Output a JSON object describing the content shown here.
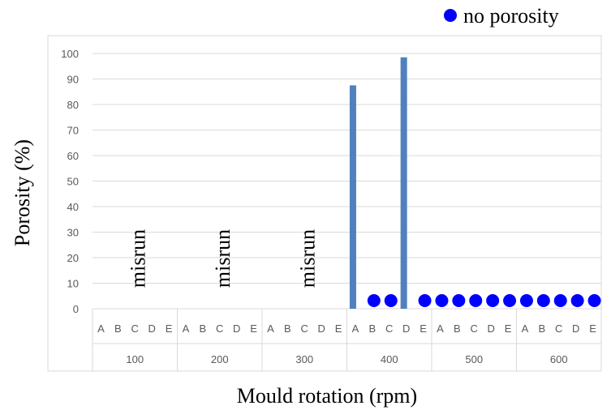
{
  "chart_data": {
    "type": "bar",
    "title": "",
    "xlabel": "Mould rotation (rpm)",
    "ylabel": "Porosity (%)",
    "ylim": [
      0,
      100
    ],
    "yticks": [
      0,
      10,
      20,
      30,
      40,
      50,
      60,
      70,
      80,
      90,
      100
    ],
    "grid": true,
    "groups": [
      {
        "label": "100",
        "categories": [
          "A",
          "B",
          "C",
          "D",
          "E"
        ],
        "annotation": "misrun"
      },
      {
        "label": "200",
        "categories": [
          "A",
          "B",
          "C",
          "D",
          "E"
        ],
        "annotation": "misrun"
      },
      {
        "label": "300",
        "categories": [
          "A",
          "B",
          "C",
          "D",
          "E"
        ],
        "annotation": "misrun"
      },
      {
        "label": "400",
        "categories": [
          "A",
          "B",
          "C",
          "D",
          "E"
        ]
      },
      {
        "label": "500",
        "categories": [
          "A",
          "B",
          "C",
          "D",
          "E"
        ]
      },
      {
        "label": "600",
        "categories": [
          "A",
          "B",
          "C",
          "D",
          "E"
        ]
      }
    ],
    "bars": [
      {
        "group": "400",
        "category": "A",
        "value": 87.5
      },
      {
        "group": "400",
        "category": "D",
        "value": 98.5
      }
    ],
    "no_porosity_points": [
      {
        "group": "400",
        "category": "B"
      },
      {
        "group": "400",
        "category": "C"
      },
      {
        "group": "400",
        "category": "E"
      },
      {
        "group": "500",
        "category": "A"
      },
      {
        "group": "500",
        "category": "B"
      },
      {
        "group": "500",
        "category": "C"
      },
      {
        "group": "500",
        "category": "D"
      },
      {
        "group": "500",
        "category": "E"
      },
      {
        "group": "600",
        "category": "A"
      },
      {
        "group": "600",
        "category": "B"
      },
      {
        "group": "600",
        "category": "C"
      },
      {
        "group": "600",
        "category": "D"
      },
      {
        "group": "600",
        "category": "E"
      }
    ],
    "legend": {
      "label": "no porosity",
      "position": "top-right"
    },
    "colors": {
      "bar": "#4F81BD",
      "marker": "#0000FF",
      "grid": "#D9D9D9",
      "axis_text": "#595959"
    }
  }
}
